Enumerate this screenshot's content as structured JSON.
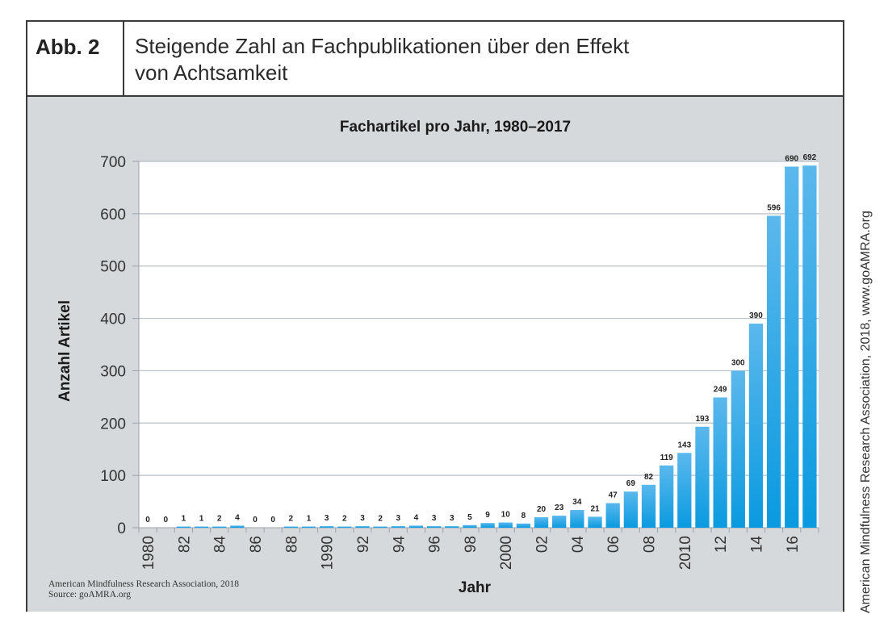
{
  "header": {
    "label": "Abb. 2",
    "title_line1": "Steigende Zahl an Fachpublikationen über den Effekt",
    "title_line2": "von Achtsamkeit"
  },
  "side_credit": "American Mindfulness Research Association, 2018, www.goAMRA.org",
  "chart_source": {
    "line1": "American Mindfulness Research Association, 2018",
    "line2": "Source: goAMRA.org"
  },
  "colors": {
    "bar_top": "#5bb8ec",
    "bar_bottom": "#0a9ae0",
    "panel": "#d5d9dc",
    "grid": "#b8bfc6"
  },
  "chart_data": {
    "type": "bar",
    "title": "Fachartikel pro Jahr, 1980–2017",
    "xlabel": "Jahr",
    "ylabel": "Anzahl Artikel",
    "ylim": [
      0,
      700
    ],
    "yticks": [
      0,
      100,
      200,
      300,
      400,
      500,
      600,
      700
    ],
    "grid": true,
    "categories": [
      "1980",
      "1981",
      "1982",
      "1983",
      "1984",
      "1985",
      "1986",
      "1987",
      "1988",
      "1989",
      "1990",
      "1991",
      "1992",
      "1993",
      "1994",
      "1995",
      "1996",
      "1997",
      "1998",
      "1999",
      "2000",
      "2001",
      "2002",
      "2003",
      "2004",
      "2005",
      "2006",
      "2007",
      "2008",
      "2009",
      "2010",
      "2011",
      "2012",
      "2013",
      "2014",
      "2015",
      "2016",
      "2017"
    ],
    "tick_labels": [
      "1980",
      "",
      "82",
      "",
      "84",
      "",
      "86",
      "",
      "88",
      "",
      "1990",
      "",
      "92",
      "",
      "94",
      "",
      "96",
      "",
      "98",
      "",
      "2000",
      "",
      "02",
      "",
      "04",
      "",
      "06",
      "",
      "08",
      "",
      "2010",
      "",
      "12",
      "",
      "14",
      "",
      "16",
      ""
    ],
    "values": [
      0,
      0,
      1,
      1,
      2,
      4,
      0,
      0,
      2,
      1,
      3,
      2,
      3,
      2,
      3,
      4,
      3,
      3,
      5,
      9,
      10,
      8,
      20,
      23,
      34,
      21,
      47,
      69,
      82,
      119,
      143,
      193,
      249,
      300,
      390,
      596,
      690,
      692
    ]
  }
}
